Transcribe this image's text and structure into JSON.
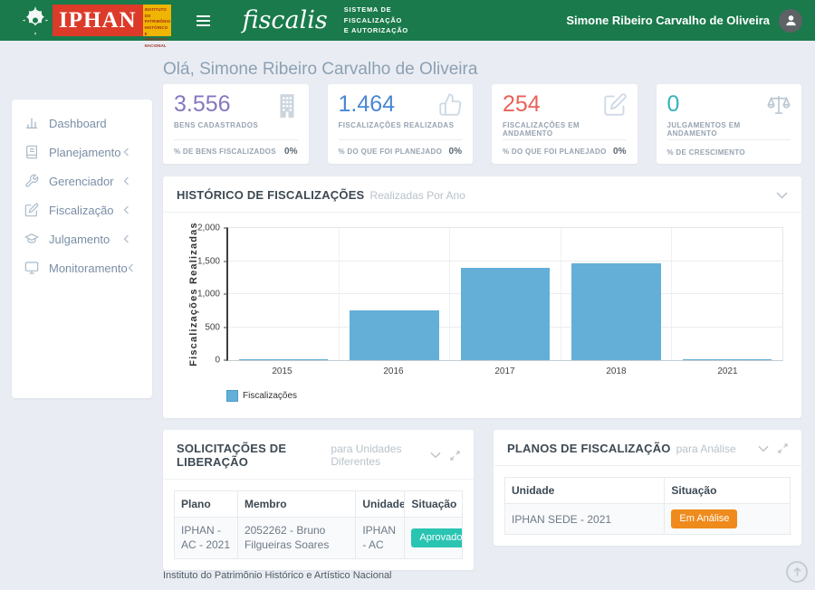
{
  "colors": {
    "header_green": "#1a7a4b",
    "page_bg": "#e9edf3",
    "badge_approved": "#2ac4b3",
    "badge_analysis": "#ef8b1d"
  },
  "header": {
    "iphan_acronym": "IPHAN",
    "iphan_full": "Instituto do Patrimônio Histórico e Artístico Nacional",
    "brand": "fiscalis",
    "system_name": "SISTEMA DE\nFISCALIZAÇÃO\nE AUTORIZAÇÃO",
    "user_name": "Simone Ribeiro Carvalho de Oliveira"
  },
  "greeting": "Olá, Simone Ribeiro Carvalho de Oliveira",
  "sidebar": {
    "items": [
      {
        "label": "Dashboard",
        "has_submenu": false
      },
      {
        "label": "Planejamento",
        "has_submenu": true
      },
      {
        "label": "Gerenciador",
        "has_submenu": true
      },
      {
        "label": "Fiscalização",
        "has_submenu": true
      },
      {
        "label": "Julgamento",
        "has_submenu": true
      },
      {
        "label": "Monitoramento",
        "has_submenu": true
      }
    ]
  },
  "stat_cards": [
    {
      "value": "3.556",
      "label": "BENS CADASTRADOS",
      "foot_label": "% DE BENS FISCALIZADOS",
      "foot_value": "0%",
      "color": "#8677c1",
      "icon": "building-icon"
    },
    {
      "value": "1.464",
      "label": "FISCALIZAÇÕES REALIZADAS",
      "foot_label": "% DO QUE FOI PLANEJADO",
      "foot_value": "0%",
      "color": "#4a87d3",
      "icon": "thumbs-up-icon"
    },
    {
      "value": "254",
      "label": "FISCALIZAÇÕES EM ANDAMENTO",
      "foot_label": "% DO QUE FOI PLANEJADO",
      "foot_value": "0%",
      "color": "#e8635a",
      "icon": "edit-icon"
    },
    {
      "value": "0",
      "label": "JULGAMENTOS EM ANDAMENTO",
      "foot_label": "% DE CRESCIMENTO",
      "foot_value": "",
      "color": "#35b2bb",
      "icon": "scales-icon"
    }
  ],
  "chart_panel": {
    "title": "HISTÓRICO DE FISCALIZAÇÕES",
    "subtitle": "Realizadas Por Ano"
  },
  "chart_data": {
    "type": "bar",
    "title": "Histórico de Fiscalizações — Realizadas Por Ano",
    "categories": [
      "2015",
      "2016",
      "2017",
      "2018",
      "2021"
    ],
    "values": [
      20,
      750,
      1400,
      1460,
      10
    ],
    "ylabel": "Fiscalizações Realizadas",
    "xlabel": "",
    "ylim": [
      0,
      2000
    ],
    "ytick_labels": [
      "0",
      "500",
      "1,000",
      "1,500",
      "2,000"
    ],
    "legend": [
      "Fiscalizações"
    ],
    "legend_position": "bottom-left",
    "grid": true,
    "bar_color": "#63afd8"
  },
  "liberation_panel": {
    "title": "SOLICITAÇÕES DE LIBERAÇÃO",
    "subtitle": "para Unidades Diferentes",
    "columns": [
      "Plano",
      "Membro",
      "Unidade",
      "Situação"
    ],
    "rows": [
      {
        "plano": "IPHAN - AC - 2021",
        "membro": "2052262 - Bruno Filgueiras Soares",
        "unidade": "IPHAN - AC",
        "situacao": "Aprovado"
      }
    ]
  },
  "plans_panel": {
    "title": "PLANOS DE FISCALIZAÇÃO",
    "subtitle": "para Análise",
    "columns": [
      "Unidade",
      "Situação"
    ],
    "rows": [
      {
        "unidade": "IPHAN SEDE - 2021",
        "situacao": "Em Análise"
      }
    ]
  },
  "footer": "Instituto do Patrimônio Histórico e Artístico Nacional"
}
